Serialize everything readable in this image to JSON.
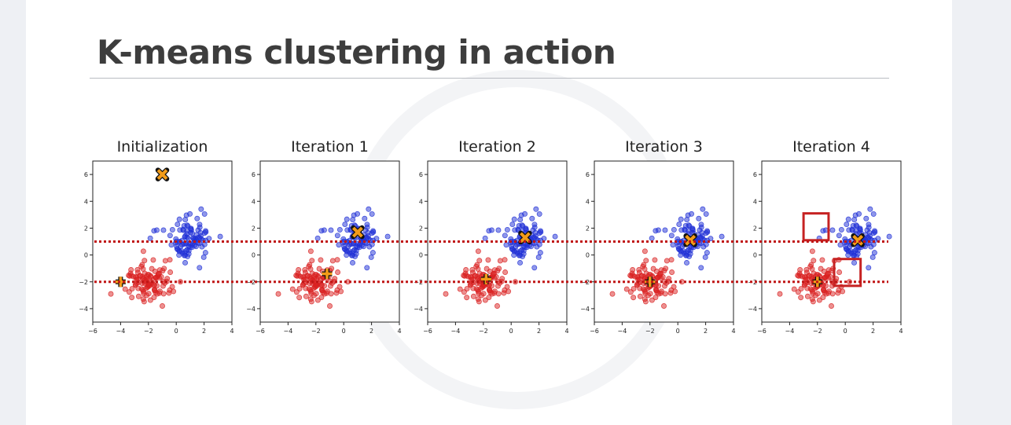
{
  "slide": {
    "title": "K-means clustering in action"
  },
  "colors": {
    "cluster_red": "#d92121",
    "cluster_blue": "#1f2fd6",
    "centroid": "#f39c19",
    "threshold_line": "#c01616",
    "highlight_box": "#c62222"
  },
  "chart_data": [
    {
      "type": "scatter",
      "title": "Initialization",
      "xlim": [
        -6,
        4
      ],
      "ylim": [
        -5,
        7
      ],
      "xticks": [
        -6,
        -4,
        -2,
        0,
        2,
        4
      ],
      "yticks": [
        -4,
        -2,
        0,
        2,
        4,
        6
      ],
      "centroids": [
        {
          "x": -1,
          "y": 6,
          "marker": "x",
          "cluster": "blue"
        },
        {
          "x": -4,
          "y": -2,
          "marker": "+",
          "cluster": "red"
        }
      ]
    },
    {
      "type": "scatter",
      "title": "Iteration 1",
      "xlim": [
        -6,
        4
      ],
      "ylim": [
        -5,
        7
      ],
      "xticks": [
        -6,
        -4,
        -2,
        0,
        2,
        4
      ],
      "yticks": [
        -4,
        -2,
        0,
        2,
        4,
        6
      ],
      "centroids": [
        {
          "x": 1,
          "y": 1.7,
          "marker": "x",
          "cluster": "blue"
        },
        {
          "x": -1.2,
          "y": -1.4,
          "marker": "+",
          "cluster": "red"
        }
      ]
    },
    {
      "type": "scatter",
      "title": "Iteration 2",
      "xlim": [
        -6,
        4
      ],
      "ylim": [
        -5,
        7
      ],
      "xticks": [
        -6,
        -4,
        -2,
        0,
        2,
        4
      ],
      "yticks": [
        -4,
        -2,
        0,
        2,
        4,
        6
      ],
      "centroids": [
        {
          "x": 1,
          "y": 1.3,
          "marker": "x",
          "cluster": "blue"
        },
        {
          "x": -1.8,
          "y": -1.8,
          "marker": "+",
          "cluster": "red"
        }
      ]
    },
    {
      "type": "scatter",
      "title": "Iteration 3",
      "xlim": [
        -6,
        4
      ],
      "ylim": [
        -5,
        7
      ],
      "xticks": [
        -6,
        -4,
        -2,
        0,
        2,
        4
      ],
      "yticks": [
        -4,
        -2,
        0,
        2,
        4,
        6
      ],
      "centroids": [
        {
          "x": 0.9,
          "y": 1.1,
          "marker": "x",
          "cluster": "blue"
        },
        {
          "x": -2,
          "y": -2,
          "marker": "+",
          "cluster": "red"
        }
      ]
    },
    {
      "type": "scatter",
      "title": "Iteration 4",
      "xlim": [
        -6,
        4
      ],
      "ylim": [
        -5,
        7
      ],
      "xticks": [
        -6,
        -4,
        -2,
        0,
        2,
        4
      ],
      "yticks": [
        -4,
        -2,
        0,
        2,
        4,
        6
      ],
      "centroids": [
        {
          "x": 0.9,
          "y": 1.1,
          "marker": "x",
          "cluster": "blue"
        },
        {
          "x": -2,
          "y": -2,
          "marker": "+",
          "cluster": "red"
        }
      ],
      "highlight_boxes": [
        {
          "x0": -3,
          "x1": -1.2,
          "y0": 1.1,
          "y1": 3.1
        },
        {
          "x0": -0.8,
          "x1": 1.1,
          "y0": -2.3,
          "y1": -0.3
        }
      ]
    }
  ],
  "threshold_lines": [
    1,
    -2
  ]
}
